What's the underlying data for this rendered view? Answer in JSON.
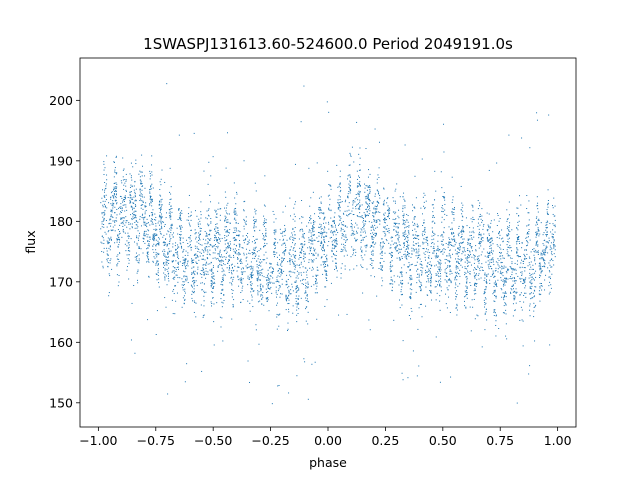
{
  "chart_data": {
    "type": "scatter",
    "title": "1SWASPJ131613.60-524600.0 Period 2049191.0s",
    "xlabel": "phase",
    "ylabel": "flux",
    "xlim": [
      -1.08,
      1.08
    ],
    "ylim": [
      146,
      207
    ],
    "xticks": [
      -1.0,
      -0.75,
      -0.5,
      -0.25,
      0.0,
      0.25,
      0.5,
      0.75,
      1.0
    ],
    "xtick_labels": [
      "−1.00",
      "−0.75",
      "−0.50",
      "−0.25",
      "0.00",
      "0.25",
      "0.50",
      "0.75",
      "1.00"
    ],
    "yticks": [
      150,
      160,
      170,
      180,
      190,
      200
    ],
    "ytick_labels": [
      "150",
      "160",
      "170",
      "180",
      "190",
      "200"
    ],
    "grid": false,
    "legend": "none",
    "marker_color": "#1f77b4",
    "series": [
      {
        "points_summary": "folded light curve, phase -1 to 1 (two cycles), flux mostly 168-185 with scatter 148-203",
        "mean_flux_by_phase": {
          "phase": [
            -1.0,
            -0.9,
            -0.8,
            -0.7,
            -0.6,
            -0.5,
            -0.4,
            -0.3,
            -0.2,
            -0.1,
            0.0,
            0.1,
            0.2,
            0.3,
            0.4,
            0.5,
            0.6,
            0.7,
            0.8,
            0.9,
            1.0
          ],
          "flux": [
            179,
            181,
            180,
            176,
            174,
            175,
            175,
            173,
            172,
            173,
            177,
            181,
            180,
            176,
            174,
            175,
            175,
            173,
            172,
            173,
            178
          ]
        }
      }
    ]
  }
}
